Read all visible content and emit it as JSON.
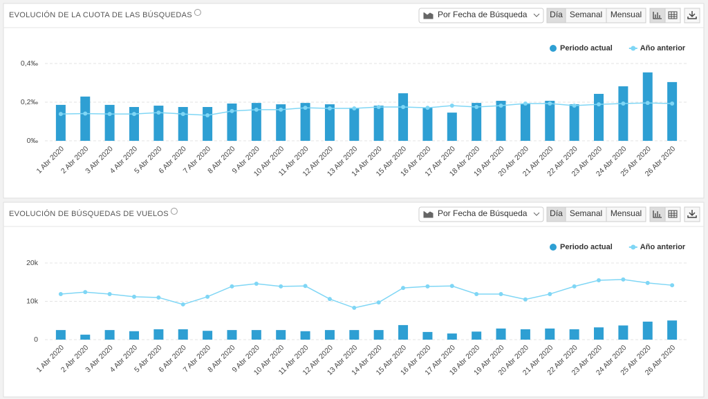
{
  "toolbar": {
    "dropdown": "Por Fecha de Búsqueda",
    "views": [
      "Día",
      "Semanal",
      "Mensual"
    ]
  },
  "chart_data": [
    {
      "type": "bar",
      "title": "EVOLUCIÓN DE LA CUOTA DE LAS BÚSQUEDAS",
      "categories": [
        "1 Abr 2020",
        "2 Abr 2020",
        "3 Abr 2020",
        "4 Abr 2020",
        "5 Abr 2020",
        "6 Abr 2020",
        "7 Abr 2020",
        "8 Abr 2020",
        "9 Abr 2020",
        "10 Abr 2020",
        "11 Abr 2020",
        "12 Abr 2020",
        "13 Abr 2020",
        "14 Abr 2020",
        "15 Abr 2020",
        "16 Abr 2020",
        "17 Abr 2020",
        "18 Abr 2020",
        "19 Abr 2020",
        "20 Abr 2020",
        "21 Abr 2020",
        "22 Abr 2020",
        "23 Abr 2020",
        "24 Abr 2020",
        "25 Abr 2020",
        "26 Abr 2020"
      ],
      "series": [
        {
          "name": "Periodo actual",
          "type": "bar",
          "color": "#2e9fd3",
          "values": [
            0.186,
            0.229,
            0.186,
            0.175,
            0.182,
            0.175,
            0.175,
            0.193,
            0.196,
            0.189,
            0.196,
            0.189,
            0.171,
            0.182,
            0.246,
            0.171,
            0.146,
            0.196,
            0.207,
            0.193,
            0.207,
            0.189,
            0.243,
            0.282,
            0.354,
            0.304
          ]
        },
        {
          "name": "Año anterior",
          "type": "line",
          "color": "#7fd6f5",
          "values": [
            0.139,
            0.141,
            0.139,
            0.139,
            0.146,
            0.139,
            0.132,
            0.154,
            0.161,
            0.161,
            0.171,
            0.168,
            0.168,
            0.175,
            0.175,
            0.171,
            0.182,
            0.175,
            0.182,
            0.193,
            0.193,
            0.182,
            0.189,
            0.193,
            0.196,
            0.193
          ]
        }
      ],
      "ylim": [
        0,
        0.4
      ],
      "yticks": [
        {
          "value": 0,
          "label": "0‰"
        },
        {
          "value": 0.2,
          "label": "0,2‰"
        },
        {
          "value": 0.4,
          "label": "0,4‰"
        }
      ],
      "grid": true,
      "legend": "top-right"
    },
    {
      "type": "bar",
      "title": "EVOLUCIÓN DE BÚSQUEDAS DE VUELOS",
      "categories": [
        "1 Abr 2020",
        "2 Abr 2020",
        "3 Abr 2020",
        "4 Abr 2020",
        "5 Abr 2020",
        "6 Abr 2020",
        "7 Abr 2020",
        "8 Abr 2020",
        "9 Abr 2020",
        "10 Abr 2020",
        "11 Abr 2020",
        "12 Abr 2020",
        "13 Abr 2020",
        "14 Abr 2020",
        "15 Abr 2020",
        "16 Abr 2020",
        "17 Abr 2020",
        "18 Abr 2020",
        "19 Abr 2020",
        "20 Abr 2020",
        "21 Abr 2020",
        "22 Abr 2020",
        "23 Abr 2020",
        "24 Abr 2020",
        "25 Abr 2020",
        "26 Abr 2020"
      ],
      "series": [
        {
          "name": "Periodo actual",
          "type": "bar",
          "color": "#2e9fd3",
          "values": [
            2500,
            1300,
            2500,
            2200,
            2700,
            2700,
            2300,
            2500,
            2500,
            2500,
            2200,
            2500,
            2500,
            2500,
            3800,
            2000,
            1600,
            2100,
            2900,
            2700,
            2900,
            2700,
            3200,
            3700,
            4700,
            5000
          ]
        },
        {
          "name": "Año anterior",
          "type": "line",
          "color": "#7fd6f5",
          "values": [
            11900,
            12400,
            11900,
            11200,
            11000,
            9200,
            11200,
            13900,
            14600,
            13900,
            14000,
            10600,
            8300,
            9700,
            13500,
            13900,
            14000,
            11900,
            11900,
            10500,
            11900,
            13900,
            15500,
            15700,
            14800,
            14200
          ]
        }
      ],
      "ylim": [
        0,
        20000
      ],
      "yticks": [
        0,
        {
          "value": 10000,
          "label": "10k"
        },
        {
          "value": 20000,
          "label": "20k"
        }
      ],
      "grid": true,
      "legend": "top-right"
    }
  ]
}
